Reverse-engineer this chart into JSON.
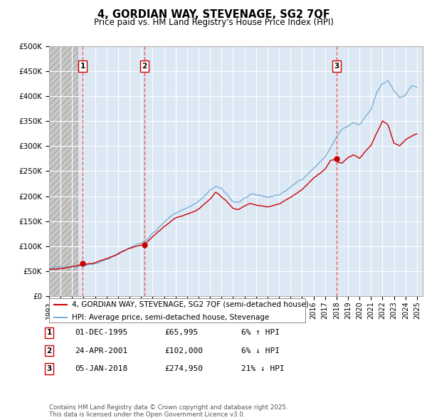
{
  "title_line1": "4, GORDIAN WAY, STEVENAGE, SG2 7QF",
  "title_line2": "Price paid vs. HM Land Registry's House Price Index (HPI)",
  "ylim": [
    0,
    500000
  ],
  "yticks": [
    0,
    50000,
    100000,
    150000,
    200000,
    250000,
    300000,
    350000,
    400000,
    450000,
    500000
  ],
  "ytick_labels": [
    "£0",
    "£50K",
    "£100K",
    "£150K",
    "£200K",
    "£250K",
    "£300K",
    "£350K",
    "£400K",
    "£450K",
    "£500K"
  ],
  "xlim_start": 1993.0,
  "xlim_end": 2025.5,
  "xticks": [
    1993,
    1994,
    1995,
    1996,
    1997,
    1998,
    1999,
    2000,
    2001,
    2002,
    2003,
    2004,
    2005,
    2006,
    2007,
    2008,
    2009,
    2010,
    2011,
    2012,
    2013,
    2014,
    2015,
    2016,
    2017,
    2018,
    2019,
    2020,
    2021,
    2022,
    2023,
    2024,
    2025
  ],
  "sale_dates": [
    1995.92,
    2001.31,
    2018.01
  ],
  "sale_prices": [
    65995,
    102000,
    274950
  ],
  "sale_labels": [
    "1",
    "2",
    "3"
  ],
  "hpi_color": "#7bafd4",
  "price_color": "#cc0000",
  "vline_color": "#dd4444",
  "legend_house_label": "4, GORDIAN WAY, STEVENAGE, SG2 7QF (semi-detached house)",
  "legend_hpi_label": "HPI: Average price, semi-detached house, Stevenage",
  "table_rows": [
    {
      "num": "1",
      "date": "01-DEC-1995",
      "price": "£65,995",
      "hpi": "6% ↑ HPI"
    },
    {
      "num": "2",
      "date": "24-APR-2001",
      "price": "£102,000",
      "hpi": "6% ↓ HPI"
    },
    {
      "num": "3",
      "date": "05-JAN-2018",
      "price": "£274,950",
      "hpi": "21% ↓ HPI"
    }
  ],
  "footnote": "Contains HM Land Registry data © Crown copyright and database right 2025.\nThis data is licensed under the Open Government Licence v3.0.",
  "bg_color": "#ffffff",
  "plot_bg_color": "#dde8f5",
  "grid_color": "#ffffff",
  "hatch_area_end": 1995.5
}
